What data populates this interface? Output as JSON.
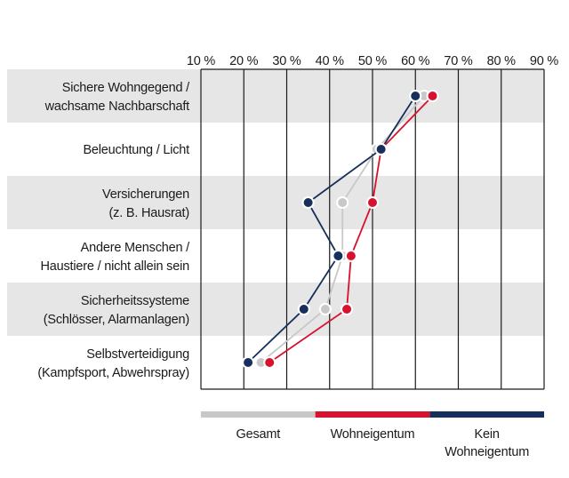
{
  "chart_data": {
    "type": "line",
    "description": "Dot/profile chart of security measures, categories on y-axis, percentage on top x-axis",
    "x_axis": {
      "position": "top",
      "min": 10,
      "max": 90,
      "step": 10,
      "ticks": [
        "10 %",
        "20 %",
        "30 %",
        "40 %",
        "50 %",
        "60 %",
        "70 %",
        "80 %",
        "90 %"
      ]
    },
    "categories": [
      {
        "label_lines": [
          "Sichere Wohngegend /",
          "wachsame Nachbarschaft"
        ],
        "shaded": true
      },
      {
        "label_lines": [
          "Beleuchtung / Licht"
        ],
        "shaded": false
      },
      {
        "label_lines": [
          "Versicherungen",
          "(z. B. Hausrat)"
        ],
        "shaded": true
      },
      {
        "label_lines": [
          "Andere Menschen /",
          "Haustiere / nicht allein sein"
        ],
        "shaded": false
      },
      {
        "label_lines": [
          "Sicherheitssysteme",
          "(Schlösser, Alarmanlagen)"
        ],
        "shaded": true
      },
      {
        "label_lines": [
          "Selbstverteidigung",
          "(Kampfsport, Abwehrspray)"
        ],
        "shaded": false
      }
    ],
    "series": [
      {
        "name": "Gesamt",
        "color": "#c8c8c8",
        "values": [
          62,
          51,
          43,
          43,
          39,
          24
        ]
      },
      {
        "name": "Wohneigentum",
        "color": "#d8112e",
        "values": [
          64,
          52,
          50,
          45,
          44,
          26
        ]
      },
      {
        "name": "Kein Wohneigentum",
        "color": "#16305b",
        "values": [
          60,
          52,
          35,
          42,
          34,
          21
        ]
      }
    ],
    "legend": {
      "position": "bottom",
      "items": [
        {
          "label_lines": [
            "Gesamt"
          ]
        },
        {
          "label_lines": [
            "Wohneigentum"
          ]
        },
        {
          "label_lines": [
            "Kein",
            "Wohneigentum"
          ]
        }
      ]
    },
    "colors": {
      "band": "#e6e6e6",
      "grid": "#1a1a1a",
      "text": "#1a1a1a",
      "background": "#ffffff",
      "dot_stroke": "#ffffff"
    }
  }
}
